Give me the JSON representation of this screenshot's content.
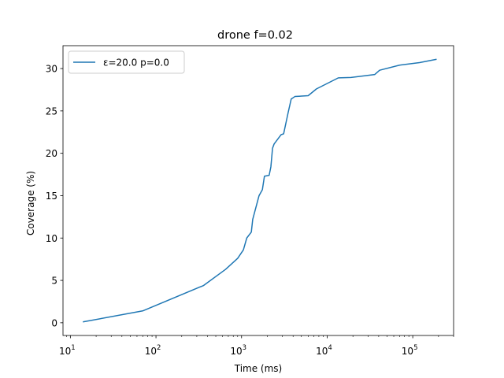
{
  "chart_data": {
    "type": "line",
    "title": "drone f=0.02",
    "xlabel": "Time (ms)",
    "ylabel": "Coverage (%)",
    "xscale": "log",
    "xlim": [
      8.2,
      300000
    ],
    "ylim": [
      -1.5,
      32.7
    ],
    "grid": false,
    "legend_position": "upper-left",
    "x_ticks": [
      {
        "value": 10,
        "base": "10",
        "exp": "1"
      },
      {
        "value": 100,
        "base": "10",
        "exp": "2"
      },
      {
        "value": 1000,
        "base": "10",
        "exp": "3"
      },
      {
        "value": 10000,
        "base": "10",
        "exp": "4"
      },
      {
        "value": 100000,
        "base": "10",
        "exp": "5"
      }
    ],
    "y_ticks": [
      {
        "value": 0,
        "label": "0"
      },
      {
        "value": 5,
        "label": "5"
      },
      {
        "value": 10,
        "label": "10"
      },
      {
        "value": 15,
        "label": "15"
      },
      {
        "value": 20,
        "label": "20"
      },
      {
        "value": 25,
        "label": "25"
      },
      {
        "value": 30,
        "label": "30"
      }
    ],
    "series": [
      {
        "name": "ε=20.0 p=0.0",
        "color": "#1f77b4",
        "x": [
          14,
          70,
          360,
          650,
          900,
          1050,
          1150,
          1300,
          1350,
          1600,
          1750,
          1850,
          2100,
          2200,
          2300,
          2400,
          2900,
          3100,
          3500,
          3800,
          4200,
          6000,
          7500,
          13500,
          19000,
          36000,
          41000,
          70000,
          120000,
          190000
        ],
        "y": [
          0.1,
          1.4,
          4.4,
          6.3,
          7.6,
          8.6,
          10.0,
          10.7,
          12.2,
          15.0,
          15.7,
          17.3,
          17.4,
          18.4,
          20.6,
          21.1,
          22.2,
          22.3,
          24.8,
          26.4,
          26.7,
          26.8,
          27.6,
          28.9,
          28.95,
          29.3,
          29.8,
          30.4,
          30.7,
          31.1
        ]
      }
    ]
  }
}
